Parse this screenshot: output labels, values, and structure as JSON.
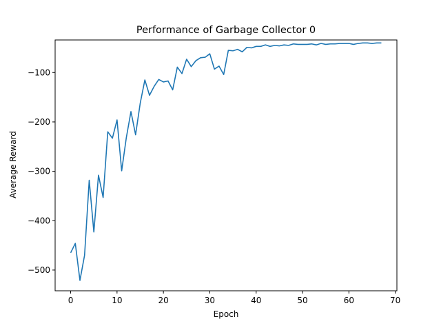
{
  "chart_data": {
    "type": "line",
    "title": "Performance of Garbage Collector 0",
    "xlabel": "Epoch",
    "ylabel": "Average Reward",
    "xlim": [
      -3.35,
      70.35
    ],
    "ylim": [
      -542,
      -34
    ],
    "xticks": [
      0,
      10,
      20,
      30,
      40,
      50,
      60,
      70
    ],
    "yticks": [
      -500,
      -400,
      -300,
      -200,
      -100
    ],
    "xtick_labels": [
      "0",
      "10",
      "20",
      "30",
      "40",
      "50",
      "60",
      "70"
    ],
    "ytick_labels": [
      "−500",
      "−400",
      "−300",
      "−200",
      "−100"
    ],
    "grid": false,
    "legend": "none",
    "series": [
      {
        "color": "#1f77b4",
        "x": [
          0,
          1,
          2,
          3,
          4,
          5,
          6,
          7,
          8,
          9,
          10,
          11,
          12,
          13,
          14,
          15,
          16,
          17,
          18,
          19,
          20,
          21,
          22,
          23,
          24,
          25,
          26,
          27,
          28,
          29,
          30,
          31,
          32,
          33,
          34,
          35,
          36,
          37,
          38,
          39,
          40,
          41,
          42,
          43,
          44,
          45,
          46,
          47,
          48,
          49,
          50,
          51,
          52,
          53,
          54,
          55,
          56,
          57,
          58,
          59,
          60,
          61,
          62,
          63,
          64,
          65,
          66,
          67
        ],
        "values": [
          -465,
          -446,
          -521,
          -470,
          -318,
          -423,
          -308,
          -353,
          -220,
          -233,
          -196,
          -299,
          -232,
          -179,
          -226,
          -162,
          -115,
          -146,
          -128,
          -114,
          -119,
          -117,
          -135,
          -89,
          -102,
          -73,
          -88,
          -76,
          -70,
          -69,
          -62,
          -93,
          -87,
          -104,
          -55,
          -56,
          -53,
          -58,
          -49,
          -50,
          -47,
          -47,
          -44,
          -47,
          -45,
          -46,
          -44,
          -45,
          -42,
          -43,
          -43,
          -43,
          -42,
          -44,
          -41,
          -43,
          -42,
          -42,
          -41,
          -41,
          -41,
          -43,
          -41,
          -40,
          -40,
          -41,
          -40,
          -40
        ]
      }
    ]
  }
}
